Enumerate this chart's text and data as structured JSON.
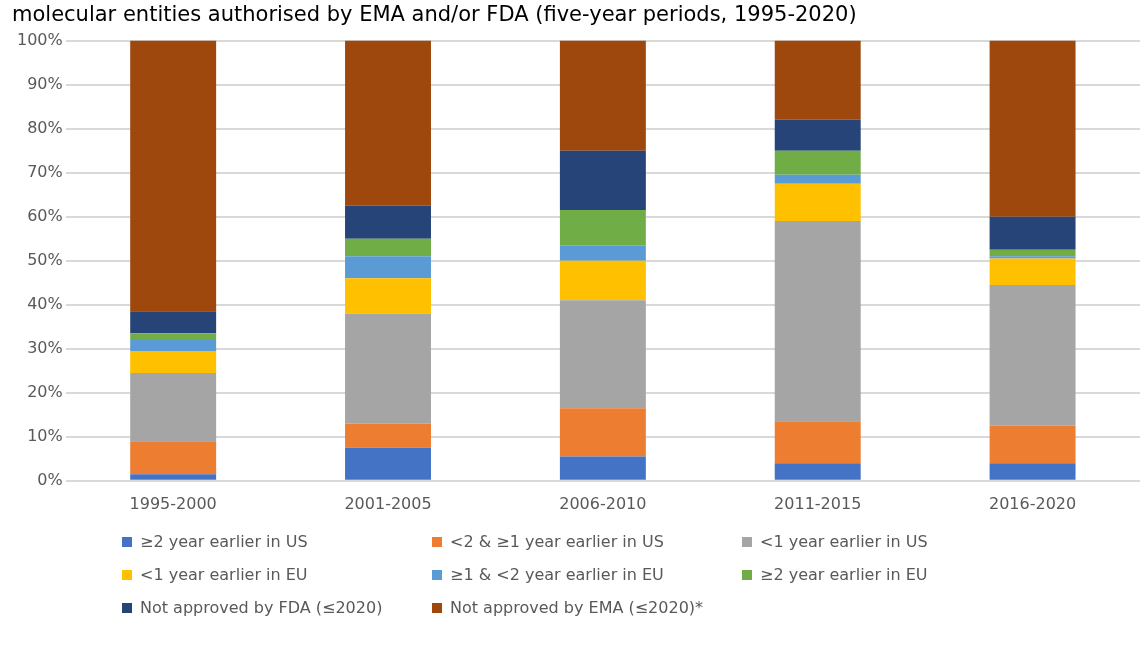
{
  "chart_data": {
    "type": "bar",
    "title": "molecular entities authorised by EMA and/or FDA (five-year periods, 1995-2020)",
    "stacked": true,
    "categories": [
      "1995-2000",
      "2001-2005",
      "2006-2010",
      "2011-2015",
      "2016-2020"
    ],
    "series": [
      {
        "name": "≥2 year earlier in US",
        "color": "#4472c4",
        "values": [
          1.5,
          7.5,
          5.5,
          4,
          4
        ]
      },
      {
        "name": "<2 & ≥1 year earlier in US",
        "color": "#ed7d31",
        "values": [
          7.5,
          5.5,
          11,
          9.5,
          8.5
        ]
      },
      {
        "name": "<1 year earlier in US",
        "color": "#a5a5a5",
        "values": [
          15.5,
          25,
          24.5,
          45.5,
          32
        ]
      },
      {
        "name": "<1 year earlier in EU",
        "color": "#ffc000",
        "values": [
          5,
          8,
          9,
          8.5,
          6
        ]
      },
      {
        "name": "≥1 & <2 year earlier in EU",
        "color": "#5b9bd5",
        "values": [
          2.5,
          5,
          3.5,
          2,
          0.5
        ]
      },
      {
        "name": "≥2 year earlier in EU",
        "color": "#70ad47",
        "values": [
          1.5,
          4,
          8,
          5.5,
          1.5
        ]
      },
      {
        "name": "Not approved by FDA (≤2020)",
        "color": "#264478",
        "values": [
          5,
          7.5,
          13.5,
          7,
          7.5
        ]
      },
      {
        "name": "Not approved by EMA (≤2020)*",
        "color": "#9e480e",
        "values": [
          61.5,
          37.5,
          25,
          18,
          40
        ]
      }
    ],
    "ylim": [
      0,
      100
    ],
    "yticks": [
      {
        "value": 0,
        "label": "0%"
      },
      {
        "value": 10,
        "label": "10%"
      },
      {
        "value": 20,
        "label": "20%"
      },
      {
        "value": 30,
        "label": "30%"
      },
      {
        "value": 40,
        "label": "40%"
      },
      {
        "value": 50,
        "label": "50%"
      },
      {
        "value": 60,
        "label": "60%"
      },
      {
        "value": 70,
        "label": "70%"
      },
      {
        "value": 80,
        "label": "80%"
      },
      {
        "value": 90,
        "label": "90%"
      },
      {
        "value": 100,
        "label": "100%"
      }
    ],
    "grid": "y",
    "legend": "bottom"
  }
}
